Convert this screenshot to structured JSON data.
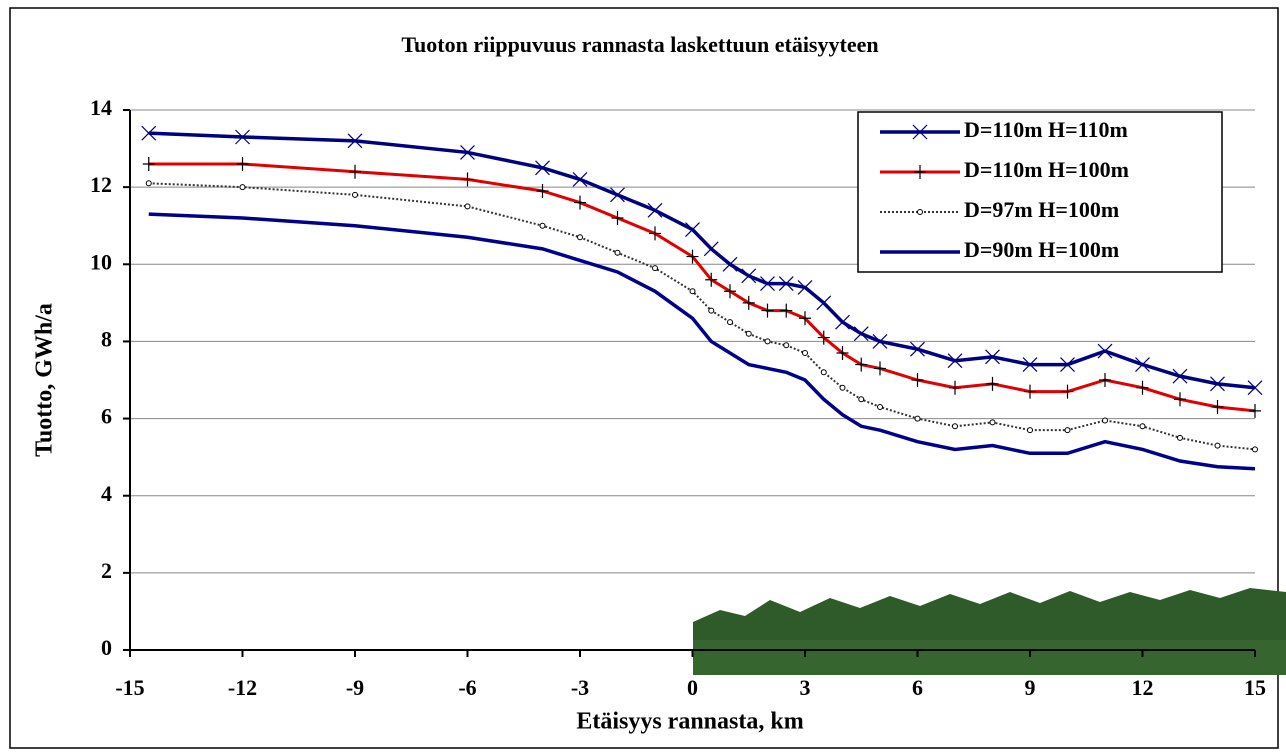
{
  "chart_data": {
    "type": "line",
    "title": "Tuoton riippuvuus rannasta laskettuun etäisyyteen",
    "x_label": "Etäisyys rannasta, km",
    "y_label": "Tuotto, GWh/a",
    "x": [
      -14.5,
      -12,
      -9,
      -6,
      -4,
      -3,
      -2,
      -1,
      0,
      0.5,
      1,
      1.5,
      2,
      2.5,
      3,
      3.5,
      4,
      4.5,
      5,
      6,
      7,
      8,
      9,
      10,
      11,
      12,
      13,
      14,
      15
    ],
    "series": [
      {
        "name": "D=110m H=110m",
        "color": "#000080",
        "marker": "x",
        "values": [
          13.4,
          13.3,
          13.2,
          12.9,
          12.5,
          12.2,
          11.8,
          11.4,
          10.9,
          10.4,
          10.0,
          9.7,
          9.5,
          9.5,
          9.4,
          9.0,
          8.5,
          8.2,
          8.0,
          7.8,
          7.5,
          7.6,
          7.4,
          7.4,
          7.75,
          7.4,
          7.1,
          6.9,
          6.8
        ]
      },
      {
        "name": "D=110m H=100m",
        "color": "#e00000",
        "marker": "+",
        "values": [
          12.6,
          12.6,
          12.4,
          12.2,
          11.9,
          11.6,
          11.2,
          10.8,
          10.2,
          9.6,
          9.3,
          9.0,
          8.8,
          8.8,
          8.6,
          8.1,
          7.7,
          7.4,
          7.3,
          7.0,
          6.8,
          6.9,
          6.7,
          6.7,
          7.0,
          6.8,
          6.5,
          6.3,
          6.2
        ]
      },
      {
        "name": "D=97m H=100m",
        "color": "#333333",
        "marker": "o",
        "values": [
          12.1,
          12.0,
          11.8,
          11.5,
          11.0,
          10.7,
          10.3,
          9.9,
          9.3,
          8.8,
          8.5,
          8.2,
          8.0,
          7.9,
          7.7,
          7.2,
          6.8,
          6.5,
          6.3,
          6.0,
          5.8,
          5.9,
          5.7,
          5.7,
          5.95,
          5.8,
          5.5,
          5.3,
          5.2
        ]
      },
      {
        "name": "D=90m H=100m",
        "color": "#00008b",
        "marker": null,
        "values": [
          11.3,
          11.2,
          11.0,
          10.7,
          10.4,
          10.1,
          9.8,
          9.3,
          8.6,
          8.0,
          7.7,
          7.4,
          7.3,
          7.2,
          7.0,
          6.5,
          6.1,
          5.8,
          5.7,
          5.4,
          5.2,
          5.3,
          5.1,
          5.1,
          5.4,
          5.2,
          4.9,
          4.75,
          4.7
        ]
      }
    ],
    "xlim": [
      -15,
      15
    ],
    "xticks": [
      -15,
      -12,
      -9,
      -6,
      -3,
      0,
      3,
      6,
      9,
      12,
      15
    ],
    "ylim": [
      0,
      14
    ],
    "yticks": [
      0,
      2,
      4,
      6,
      8,
      10,
      12,
      14
    ],
    "grid": true,
    "legend": "top-right"
  }
}
